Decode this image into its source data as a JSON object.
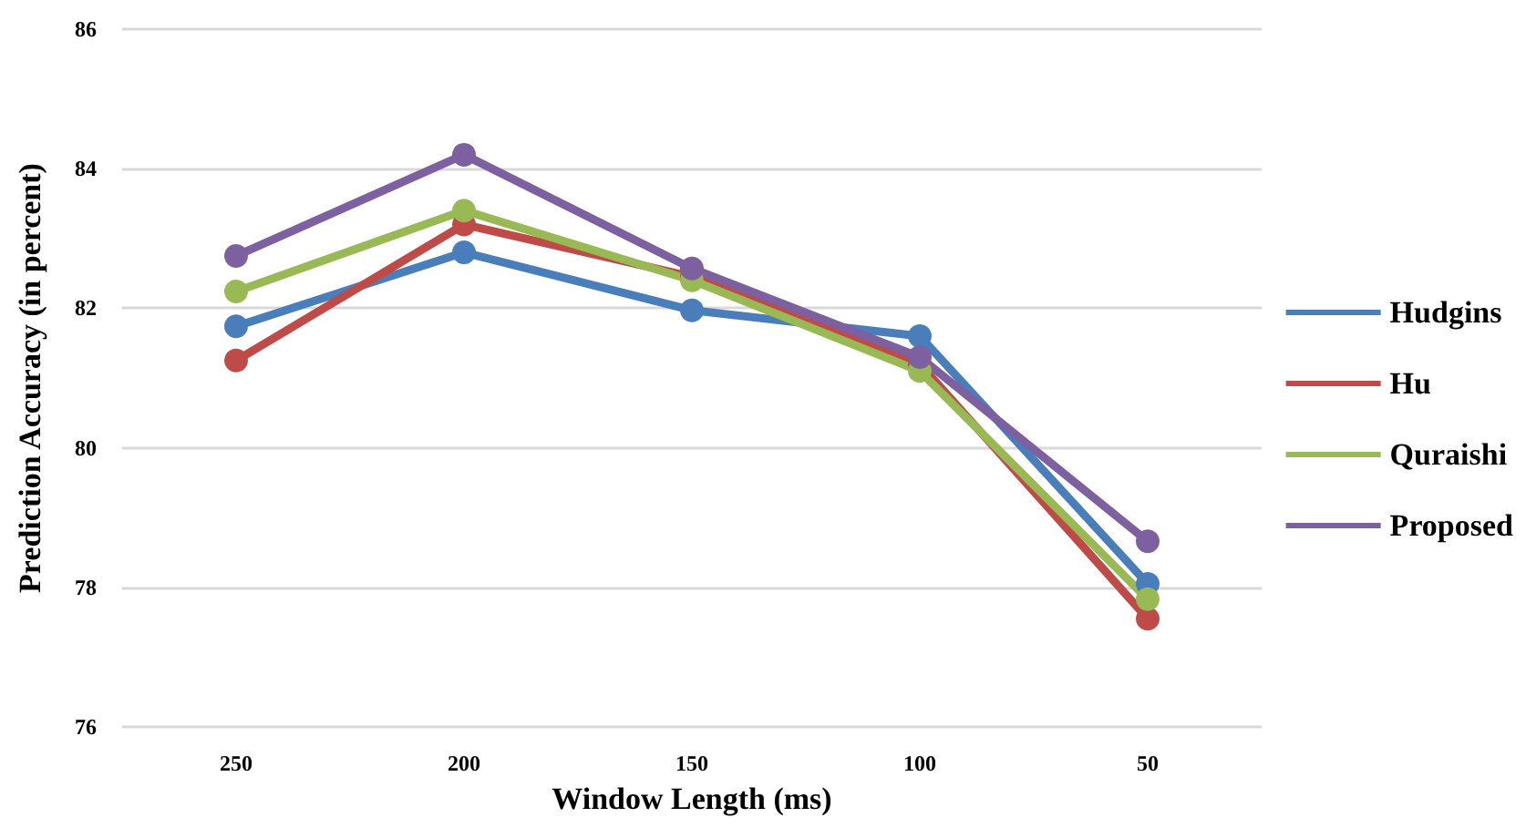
{
  "chart_data": {
    "type": "line",
    "xlabel": "Window Length (ms)",
    "ylabel": "Prediction Accuracy (in percent)",
    "categories": [
      "250",
      "200",
      "150",
      "100",
      "50"
    ],
    "series": [
      {
        "name": "Hudgins",
        "color": "#4a7ebb",
        "values": [
          81.74,
          82.8,
          81.97,
          81.6,
          78.05
        ]
      },
      {
        "name": "Hu",
        "color": "#be4b48",
        "values": [
          81.25,
          83.2,
          82.45,
          81.2,
          77.55
        ]
      },
      {
        "name": "Quraishi",
        "color": "#98b954",
        "values": [
          82.24,
          83.4,
          82.4,
          81.1,
          77.83
        ]
      },
      {
        "name": "Proposed",
        "color": "#7d60a0",
        "values": [
          82.75,
          84.2,
          82.57,
          81.3,
          78.66
        ]
      }
    ],
    "ylim": [
      76,
      86
    ],
    "yticks": [
      76,
      78,
      80,
      82,
      84,
      86
    ],
    "grid": "y",
    "legend": "right",
    "marker": "circle",
    "line_style": "solid"
  }
}
